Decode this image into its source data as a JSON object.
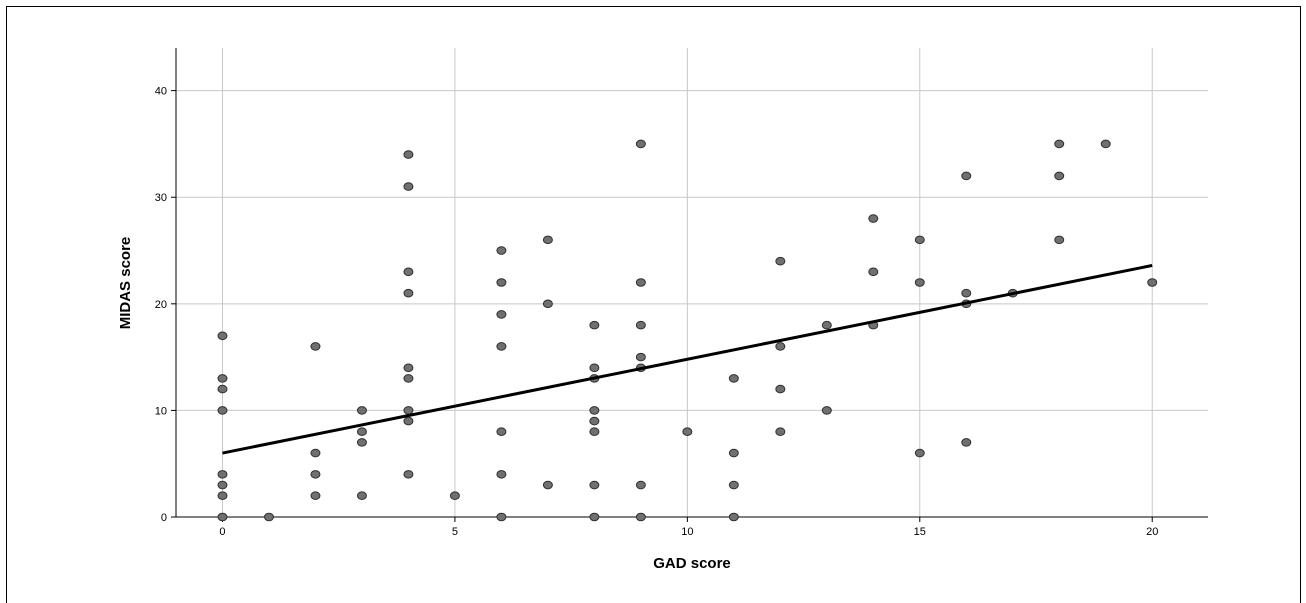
{
  "chart_data": {
    "type": "scatter",
    "title": "",
    "xlabel": "GAD score",
    "ylabel": "MIDAS score",
    "xlim": [
      -1,
      21.2
    ],
    "ylim": [
      0,
      44
    ],
    "x_ticks": [
      0,
      5,
      10,
      15,
      20
    ],
    "y_ticks": [
      0,
      10,
      20,
      30,
      40
    ],
    "grid": true,
    "colors": {
      "point_fill": "#707070",
      "point_stroke": "#303030",
      "line": "#000000",
      "grid": "#c8c8c8"
    },
    "points": [
      [
        0,
        0
      ],
      [
        0,
        2
      ],
      [
        0,
        3
      ],
      [
        0,
        4
      ],
      [
        0,
        10
      ],
      [
        0,
        12
      ],
      [
        0,
        13
      ],
      [
        0,
        17
      ],
      [
        1,
        0
      ],
      [
        2,
        2
      ],
      [
        2,
        4
      ],
      [
        2,
        6
      ],
      [
        2,
        16
      ],
      [
        3,
        2
      ],
      [
        3,
        7
      ],
      [
        3,
        8
      ],
      [
        3,
        10
      ],
      [
        4,
        4
      ],
      [
        4,
        9
      ],
      [
        4,
        10
      ],
      [
        4,
        13
      ],
      [
        4,
        14
      ],
      [
        4,
        21
      ],
      [
        4,
        23
      ],
      [
        4,
        31
      ],
      [
        4,
        34
      ],
      [
        5,
        2
      ],
      [
        6,
        0
      ],
      [
        6,
        4
      ],
      [
        6,
        8
      ],
      [
        6,
        16
      ],
      [
        6,
        19
      ],
      [
        6,
        22
      ],
      [
        6,
        25
      ],
      [
        7,
        3
      ],
      [
        7,
        20
      ],
      [
        7,
        26
      ],
      [
        8,
        0
      ],
      [
        8,
        3
      ],
      [
        8,
        8
      ],
      [
        8,
        9
      ],
      [
        8,
        10
      ],
      [
        8,
        13
      ],
      [
        8,
        14
      ],
      [
        8,
        18
      ],
      [
        9,
        0
      ],
      [
        9,
        3
      ],
      [
        9,
        14
      ],
      [
        9,
        15
      ],
      [
        9,
        18
      ],
      [
        9,
        22
      ],
      [
        9,
        35
      ],
      [
        10,
        8
      ],
      [
        11,
        0
      ],
      [
        11,
        3
      ],
      [
        11,
        6
      ],
      [
        11,
        13
      ],
      [
        12,
        8
      ],
      [
        12,
        12
      ],
      [
        12,
        16
      ],
      [
        12,
        24
      ],
      [
        13,
        10
      ],
      [
        13,
        18
      ],
      [
        14,
        18
      ],
      [
        14,
        23
      ],
      [
        14,
        28
      ],
      [
        15,
        6
      ],
      [
        15,
        22
      ],
      [
        15,
        26
      ],
      [
        16,
        7
      ],
      [
        16,
        20
      ],
      [
        16,
        21
      ],
      [
        16,
        32
      ],
      [
        17,
        21
      ],
      [
        18,
        26
      ],
      [
        18,
        32
      ],
      [
        18,
        35
      ],
      [
        19,
        35
      ],
      [
        20,
        22
      ]
    ],
    "fit_line": {
      "x": [
        0,
        20
      ],
      "y": [
        6.0,
        23.6
      ]
    }
  }
}
